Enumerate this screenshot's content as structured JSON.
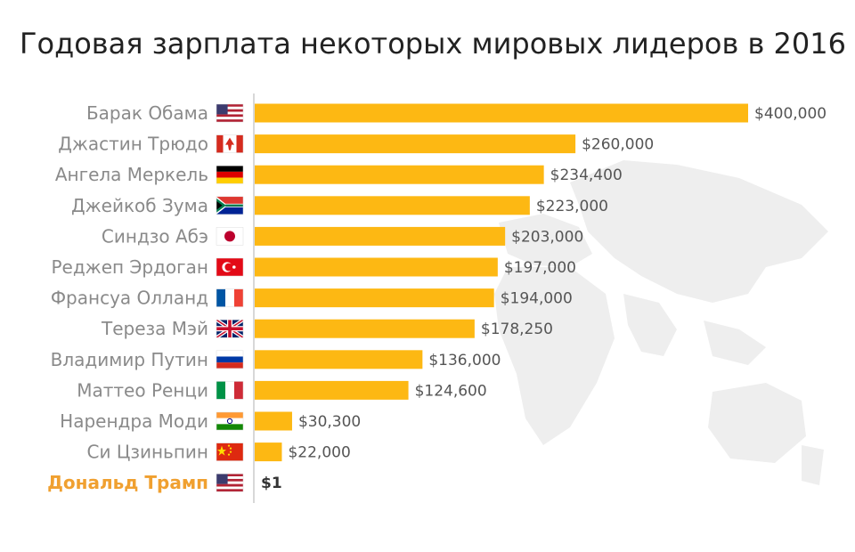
{
  "colors": {
    "bar": "#fdb813",
    "highlight_label": "#f0a030",
    "axis": "#cccccc",
    "map": "#eeeeee"
  },
  "chart_data": {
    "type": "bar",
    "orientation": "horizontal",
    "title": "Годовая зарплата некоторых мировых лидеров в 2016",
    "xlim": [
      0,
      400000
    ],
    "grid": false,
    "categories": [
      "Барак Обама",
      "Джастин Трюдо",
      "Ангела Меркель",
      "Джейкоб Зума",
      "Синдзо Абэ",
      "Реджеп Эрдоган",
      "Франсуа Олланд",
      "Тереза Мэй",
      "Владимир Путин",
      "Маттео Ренци",
      "Нарендра Моди",
      "Си Цзиньпин",
      "Дональд Трамп"
    ],
    "values": [
      400000,
      260000,
      234400,
      223000,
      203000,
      197000,
      194000,
      178250,
      136000,
      124600,
      30300,
      22000,
      1
    ],
    "value_labels": [
      "$400,000",
      "$260,000",
      "$234,400",
      "$223,000",
      "$203,000",
      "$197,000",
      "$194,000",
      "$178,250",
      "$136,000",
      "$124,600",
      "$30,300",
      "$22,000",
      "$1"
    ],
    "flags": [
      "us-flag-icon",
      "ca-flag-icon",
      "de-flag-icon",
      "za-flag-icon",
      "jp-flag-icon",
      "tr-flag-icon",
      "fr-flag-icon",
      "gb-flag-icon",
      "ru-flag-icon",
      "it-flag-icon",
      "in-flag-icon",
      "cn-flag-icon",
      "us-flag-icon"
    ],
    "highlight_index": 12
  }
}
